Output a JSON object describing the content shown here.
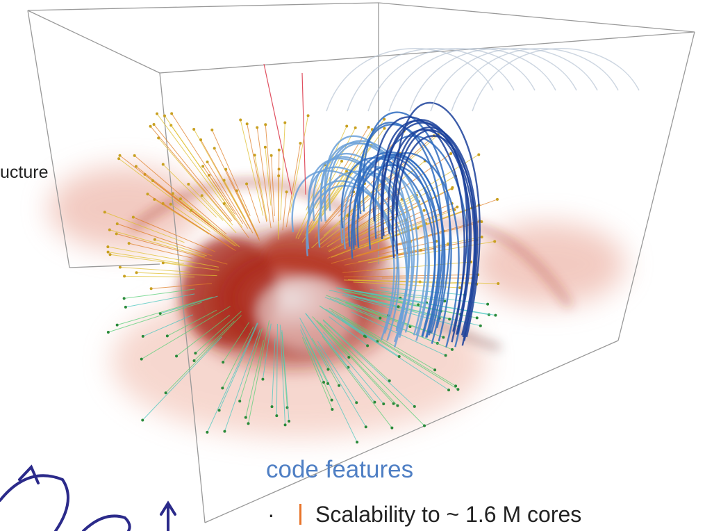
{
  "texts": {
    "partial_heading": "ucture",
    "section_heading": "code features",
    "bullets": [
      "Scalability to ~ 1.6 M cores"
    ]
  }
}
